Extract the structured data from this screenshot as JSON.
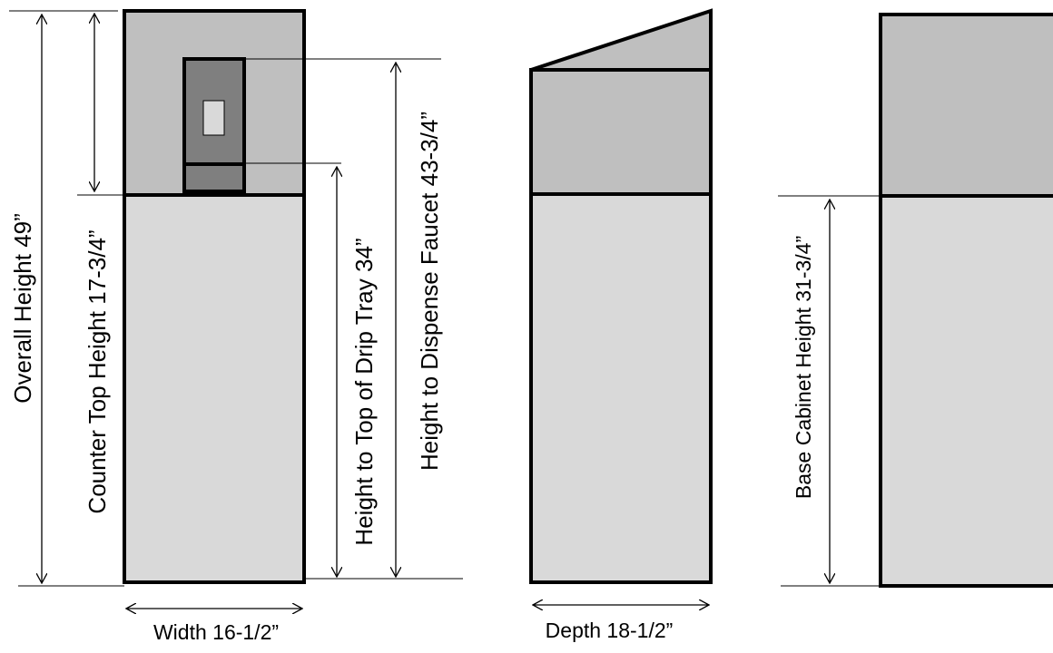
{
  "labels": {
    "overall_height": "Overall Height   49”",
    "counter_top_height": "Counter Top Height 17-3/4”",
    "height_to_drip_tray": "Height to Top of Drip Tray   34”",
    "height_to_dispense_faucet": "Height to Dispense Faucet   43-3/4”",
    "base_cabinet_height": "Base Cabinet Height 31-3/4”",
    "width": "Width 16-1/2”",
    "depth": "Depth 18-1/2”"
  },
  "colors": {
    "upper_panel": "#bfbfbf",
    "base_panel": "#d9d9d9",
    "dispenser": "#7f7f7f",
    "dispenser_window": "#d9d9d9",
    "stroke": "#000000"
  }
}
